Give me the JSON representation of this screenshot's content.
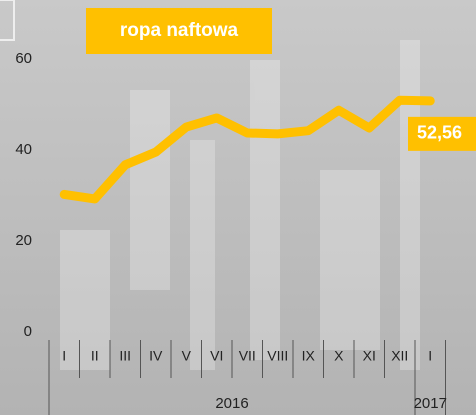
{
  "chart_data": {
    "type": "line",
    "title": "ropa naftowa",
    "categories": [
      "I",
      "II",
      "III",
      "IV",
      "V",
      "VI",
      "VII",
      "VIII",
      "IX",
      "X",
      "XI",
      "XII",
      "I"
    ],
    "series": [
      {
        "name": "ropa naftowa",
        "color": "#ffc000",
        "values": [
          32,
          31,
          38.5,
          41.3,
          46.8,
          48.8,
          45.5,
          45.3,
          46,
          50.5,
          46.6,
          52.7,
          52.56
        ],
        "value_labels": [
          null,
          null,
          null,
          null,
          null,
          null,
          null,
          null,
          null,
          null,
          null,
          null,
          "52,56"
        ]
      }
    ],
    "year_labels": [
      "2016",
      "2017"
    ],
    "ylim": [
      0,
      60
    ],
    "yticks": [
      0,
      20,
      40,
      60
    ],
    "grid": false
  }
}
